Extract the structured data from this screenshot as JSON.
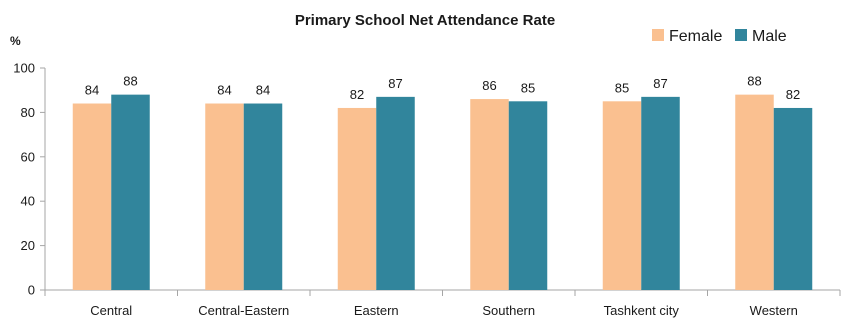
{
  "chart_data": {
    "type": "bar",
    "title": "Primary School Net Attendance Rate",
    "unit_label": "%",
    "categories": [
      "Central",
      "Central-Eastern",
      "Eastern",
      "Southern",
      "Tashkent city",
      "Western"
    ],
    "series": [
      {
        "name": "Female",
        "color": "#FAC090",
        "values": [
          84,
          84,
          82,
          86,
          85,
          88
        ]
      },
      {
        "name": "Male",
        "color": "#31859C",
        "values": [
          88,
          84,
          87,
          85,
          87,
          82
        ]
      }
    ],
    "ylim": [
      0,
      100
    ],
    "yticks": [
      0,
      20,
      40,
      60,
      80,
      100
    ],
    "grid": false,
    "legend_position": "top-right",
    "data_labels": true
  }
}
